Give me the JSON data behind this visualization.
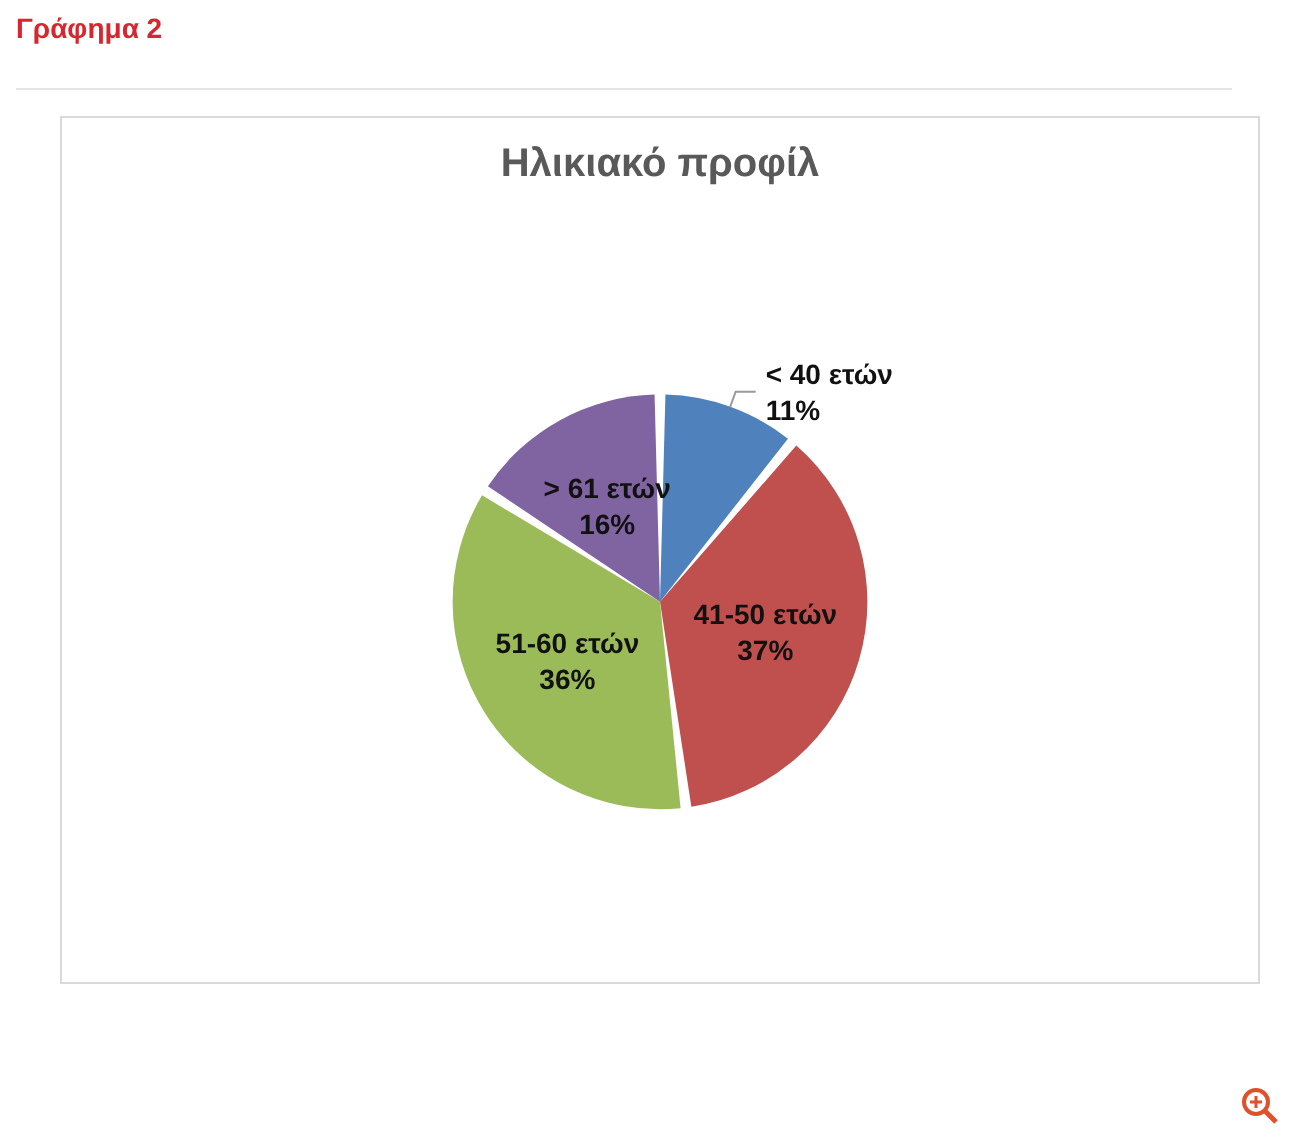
{
  "chart_data": {
    "type": "pie",
    "title": "Ηλικιακό προφίλ",
    "annotations": [
      "Γράφημα 2"
    ],
    "categories": [
      "< 40 ετών",
      "41-50 ετών",
      "51-60 ετών",
      "> 61 ετών"
    ],
    "values": [
      11,
      37,
      36,
      16
    ],
    "value_labels": [
      "11%",
      "37%",
      "36%",
      "16%"
    ],
    "colors": [
      "#4f81bd",
      "#c0504d",
      "#9bbb59",
      "#8064a2"
    ]
  }
}
